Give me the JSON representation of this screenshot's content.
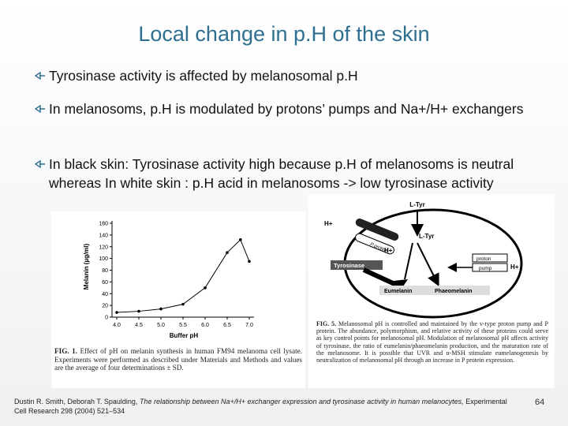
{
  "slide": {
    "title": "Local change in p.H of the skin",
    "bullets": [
      "Tyrosinase activity is affected by melanosomal p.H",
      "In melanosoms, p.H is modulated by protons’ pumps and Na+/H+ exchangers",
      "In black skin:  Tyrosinase activity high because p.H of melanosoms is neutral whereas In white skin : p.H acid in melanosoms -> low tyrosinase activity"
    ],
    "figure1": {
      "type": "line",
      "x_label": "Buffer pH",
      "y_label": "Melanin (µg/ml)",
      "x": [
        4.0,
        4.5,
        5.0,
        5.5,
        6.0,
        6.5,
        6.8,
        7.0
      ],
      "values": [
        8,
        10,
        14,
        22,
        50,
        110,
        132,
        95
      ],
      "xlim": [
        4.0,
        7.0
      ],
      "xticks": [
        {
          "value": 4,
          "label": "4.0"
        },
        4.5,
        {
          "value": 5,
          "label": "5.0"
        },
        5.5,
        {
          "value": 6,
          "label": "6.0"
        },
        6.5,
        {
          "value": 7,
          "label": "7.0"
        }
      ],
      "ylim": [
        0,
        160
      ],
      "yticks": [
        0,
        20,
        40,
        60,
        80,
        100,
        120,
        140,
        160
      ],
      "caption_label": "FIG. 1.",
      "caption": "Effect of pH on melanin synthesis in human FM94 melanoma cell lysate. Experiments were performed as described under Materials and Methods and values are the average of four determinations ± SD."
    },
    "figure2": {
      "labels": [
        "L-Tyr",
        "H+",
        "P protein",
        "H+",
        "L-Tyr",
        "Tyrosinase",
        "proton",
        "pump",
        "H+",
        "Eumelanin",
        "Phaeomelanin"
      ],
      "caption_label": "FIG. 5.",
      "caption": "Melanosomal pH is controlled and maintained by the v-type proton pump and P protein. The abundance, polymorphism, and relative activity of these proteins could serve as key control points for melanosomal pH. Modulation of melanosomal pH affects activity of tyrosinase, the ratio of eumelanin/phaeomelanin production, and the maturation rate of the melanosome. It is possible that UVR and α-MSH stimulate eumelanogenesis by neutralization of melanosomal pH through an increase in P protein expression."
    },
    "citation": {
      "authors": "Dustin R. Smith, Deborah T. Spaulding,",
      "article": "The relationship between Na+/H+ exchanger expression and tyrosinase activity in human melanocytes,",
      "journal": "Experimental Cell Research 298 (2004) 521–534"
    },
    "page_number": "64"
  }
}
